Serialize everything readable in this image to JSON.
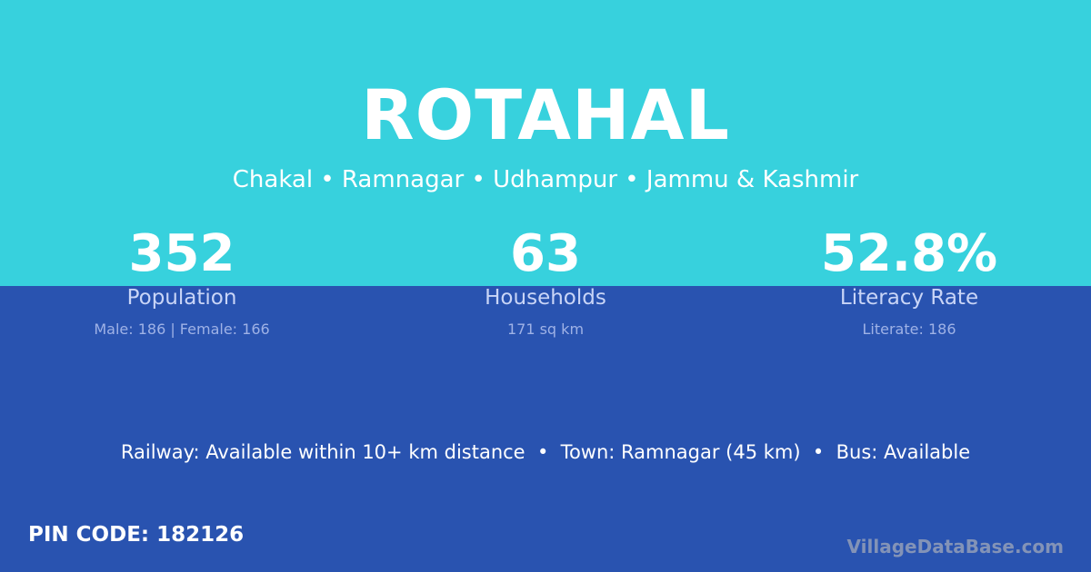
{
  "village": {
    "name": "ROTAHAL",
    "location": "Chakal • Ramnagar • Udhampur • Jammu & Kashmir"
  },
  "stats": [
    {
      "value": "352",
      "label": "Population",
      "detail": "Male: 186 | Female: 166"
    },
    {
      "value": "63",
      "label": "Households",
      "detail": "171 sq km"
    },
    {
      "value": "52.8%",
      "label": "Literacy Rate",
      "detail": "Literate: 186"
    }
  ],
  "facts": "Railway: Available within 10+ km distance  •  Town: Ramnagar (45 km)  •  Bus: Available",
  "pin": "PIN CODE: 182126",
  "brand": "VillageDataBase.com",
  "colors": {
    "top": "#37d1dd",
    "bottom": "#2953b0"
  }
}
